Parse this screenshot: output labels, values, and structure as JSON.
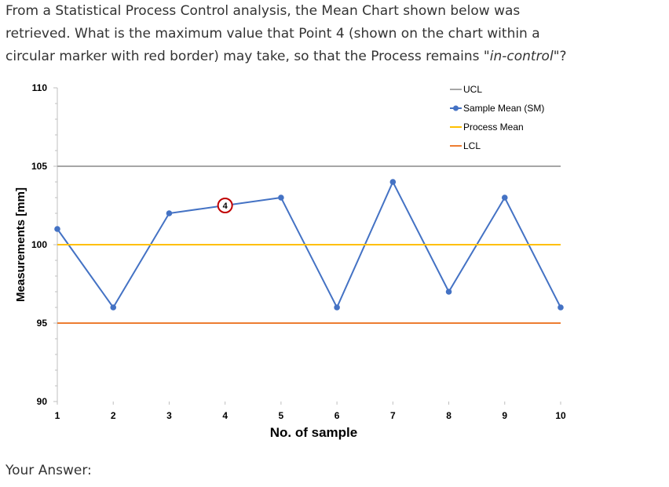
{
  "question": {
    "line1": "From a Statistical Process Control analysis, the Mean Chart shown below was",
    "line2": "retrieved. What is the maximum value that Point 4 (shown on the chart within a",
    "line3_before": "circular marker with red border) may take, so that the Process remains \"",
    "line3_em": "in-control",
    "line3_after": "\"?"
  },
  "answer_label": "Your Answer:",
  "colors": {
    "ucl": "#a6a6a6",
    "sample_mean": "#4472c4",
    "process_mean": "#ffc000",
    "lcl": "#ed7d31",
    "highlight_ring": "#c00000"
  },
  "chart_data": {
    "type": "line",
    "xlabel": "No. of sample",
    "ylabel": "Measurements [mm]",
    "ylim": [
      90,
      110
    ],
    "yticks": [
      90,
      95,
      100,
      105,
      110
    ],
    "x": [
      1,
      2,
      3,
      4,
      5,
      6,
      7,
      8,
      9,
      10
    ],
    "series": [
      {
        "name": "UCL",
        "values": [
          105,
          105,
          105,
          105,
          105,
          105,
          105,
          105,
          105,
          105
        ],
        "marker": false,
        "color": "#a6a6a6"
      },
      {
        "name": "Sample Mean (SM)",
        "values": [
          101,
          96,
          102,
          null,
          103,
          96,
          104,
          97,
          103,
          96
        ],
        "marker": true,
        "color": "#4472c4"
      },
      {
        "name": "Process Mean",
        "values": [
          100,
          100,
          100,
          100,
          100,
          100,
          100,
          100,
          100,
          100
        ],
        "marker": false,
        "color": "#ffc000"
      },
      {
        "name": "LCL",
        "values": [
          95,
          95,
          95,
          95,
          95,
          95,
          95,
          95,
          95,
          95
        ],
        "marker": false,
        "color": "#ed7d31"
      }
    ],
    "highlight": {
      "x": 4,
      "label": "4"
    },
    "legend_position": "top-right",
    "grid": false
  }
}
